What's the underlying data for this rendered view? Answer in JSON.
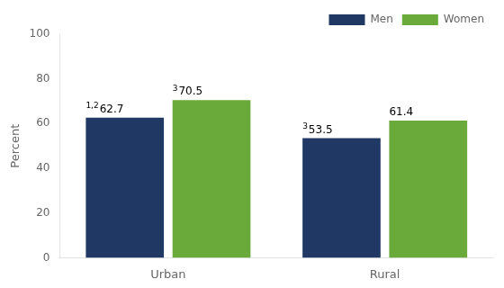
{
  "chart_data": {
    "type": "bar",
    "categories": [
      "Urban",
      "Rural"
    ],
    "series": [
      {
        "name": "Men",
        "color": "#1f3864",
        "values": [
          62.7,
          53.5
        ],
        "superscripts": [
          "1,2",
          "3"
        ]
      },
      {
        "name": "Women",
        "color": "#6aaa3a",
        "values": [
          70.5,
          61.4
        ],
        "superscripts": [
          "3",
          null
        ]
      }
    ],
    "ylabel": "Percent",
    "ylim": [
      0,
      100
    ],
    "yticks": [
      0,
      20,
      40,
      60,
      80,
      100
    ],
    "grid": false,
    "legend": "upper right",
    "data_labels": true
  }
}
